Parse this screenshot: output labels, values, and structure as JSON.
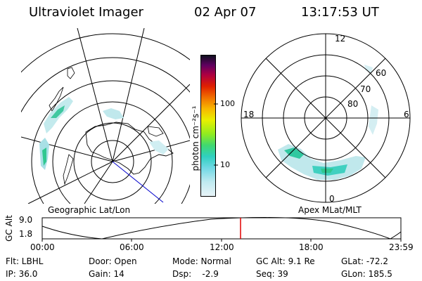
{
  "header": {
    "instrument": "Ultraviolet Imager",
    "date": "02 Apr 07",
    "time": "13:17:53 UT"
  },
  "geo_panel": {
    "label": "Geographic Lat/Lon"
  },
  "colorbar": {
    "unit": "photon cm⁻²s⁻¹",
    "tick_100": "100",
    "tick_10": "10",
    "colors": [
      "#e8f4f8",
      "#c8ecf0",
      "#98e0e8",
      "#40d0d8",
      "#30d080",
      "#60e040",
      "#a0f000",
      "#e8f000",
      "#f8c000",
      "#f08000",
      "#e82000",
      "#c00040",
      "#800060",
      "#400050",
      "#101020"
    ]
  },
  "apex_panel": {
    "label": "Apex MLat/MLT",
    "mlt_labels": {
      "top": "12",
      "left": "18",
      "right": "6",
      "bottom": "0"
    },
    "mlat_labels": {
      "m60": "60",
      "m70": "70",
      "m80": "80"
    }
  },
  "orbit": {
    "ylabel": "GC Alt",
    "ytick_top": "9.0",
    "ytick_bottom": "1.8",
    "xticks": [
      "00:00",
      "06:00",
      "12:00",
      "18:00",
      "23:59"
    ],
    "marker_color": "#e00000"
  },
  "status": {
    "filter": "Flt: LBHL",
    "ip": "IP: 36.0",
    "door": "Door: Open",
    "gain": "Gain: 14",
    "mode": "Mode: Normal",
    "dsp": "Dsp:    -2.9",
    "gc_alt": "GC Alt: 9.1 Re",
    "seq": "Seq: 39",
    "glat": "GLat: -72.2",
    "glon": "GLon: 185.5"
  }
}
